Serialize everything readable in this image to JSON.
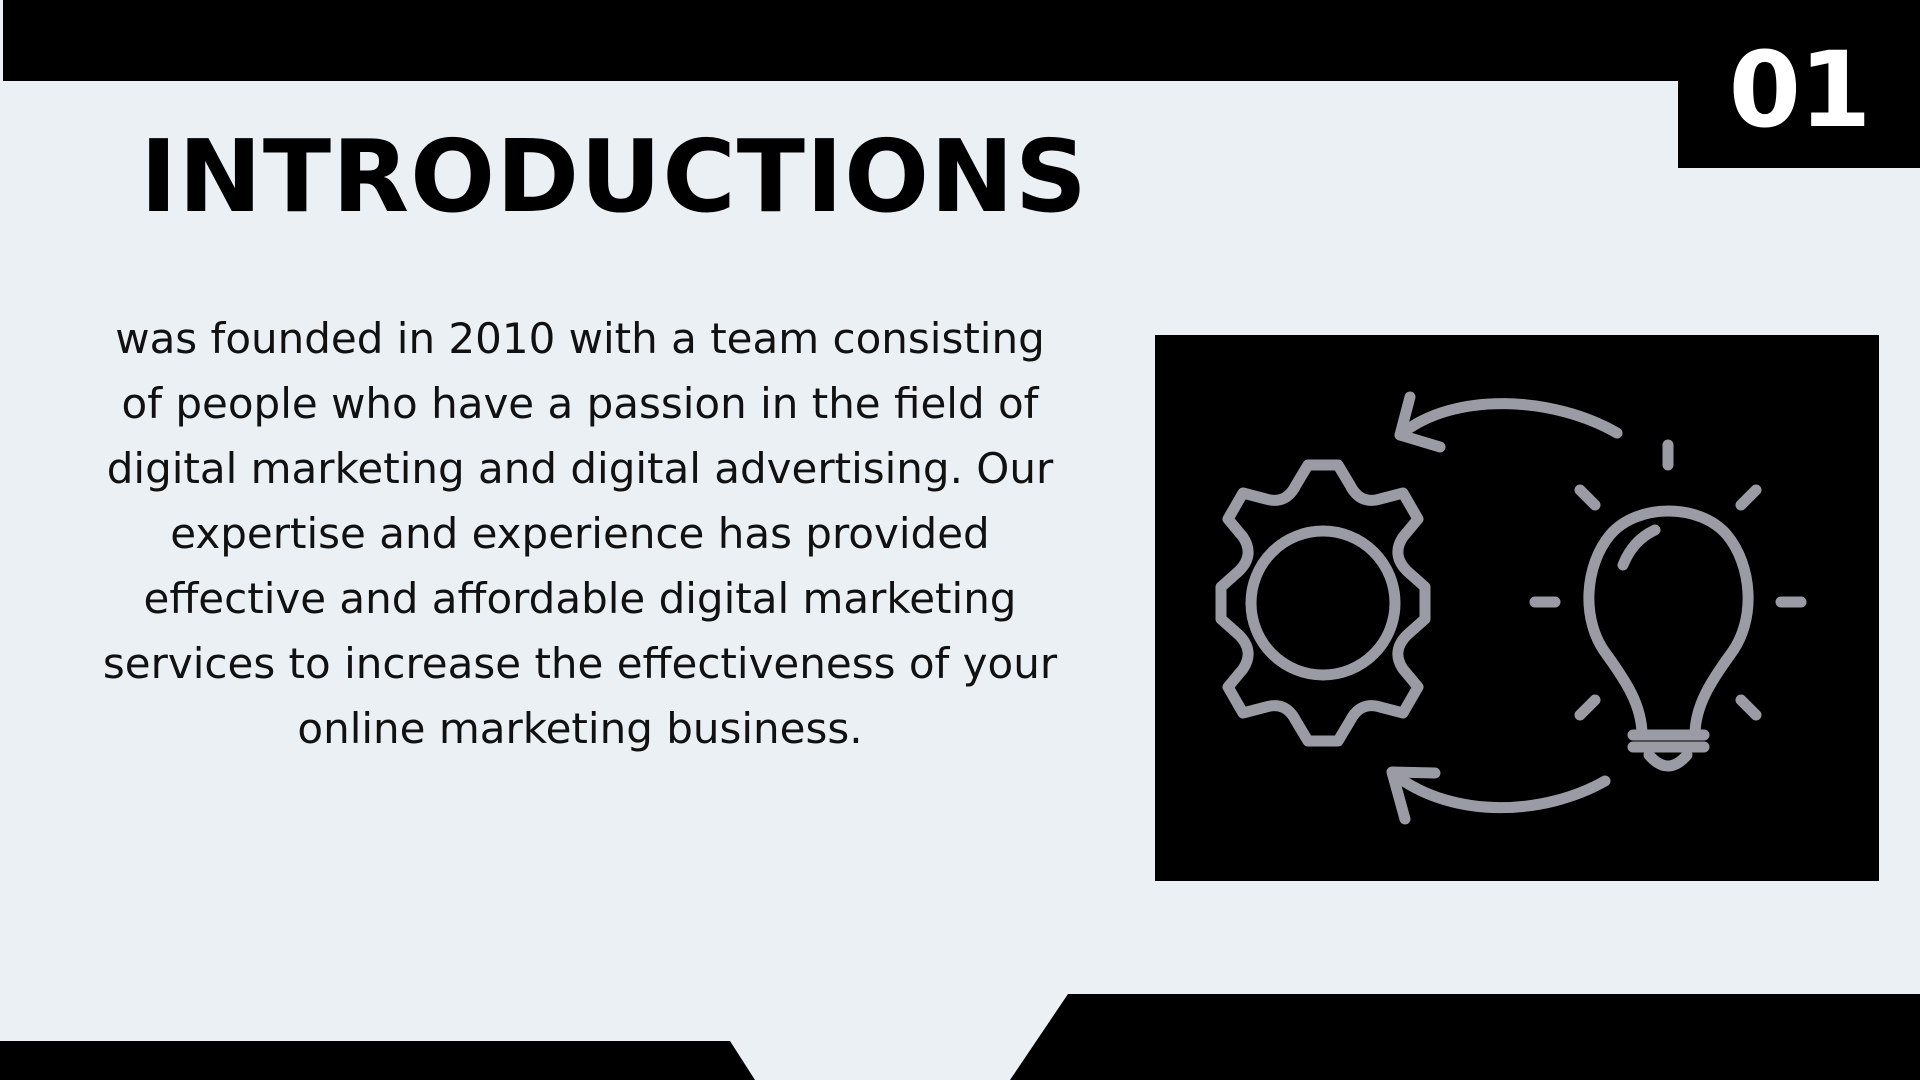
{
  "slide": {
    "number": "01",
    "title": "INTRODUCTIONS",
    "body": "was founded in 2010 with a team consisting of people who have a passion in the field of digital marketing and digital advertising. Our expertise and experience has provided effective and affordable digital marketing services to increase the effectiveness of your online marketing business."
  },
  "colors": {
    "background": "#ebf0f4",
    "dark": "#000000",
    "icon_stroke": "#9b9ba5",
    "text": "#111111"
  },
  "icons": {
    "illustration": "gear-lightbulb-cycle-icon"
  }
}
